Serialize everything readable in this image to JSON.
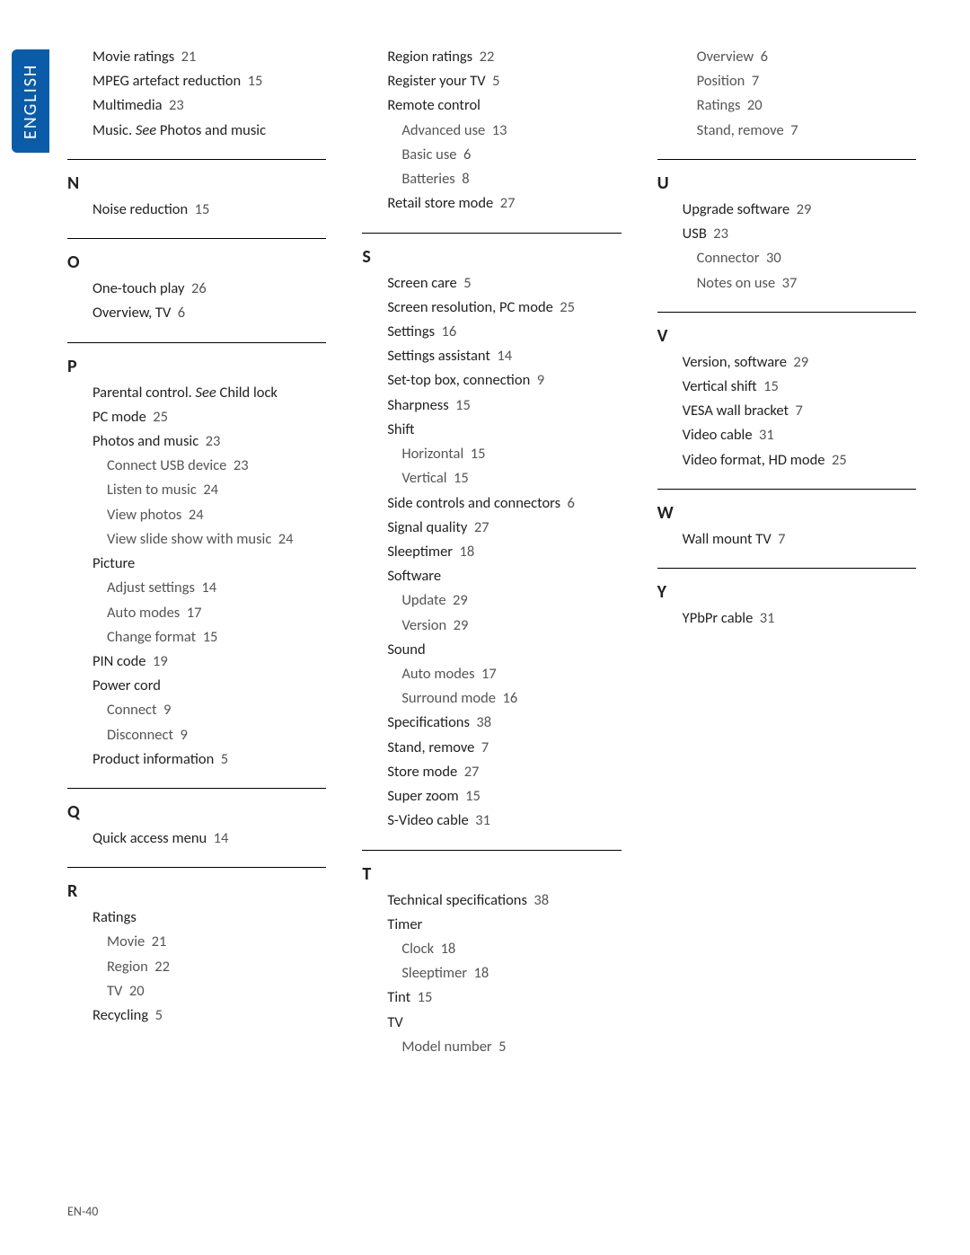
{
  "language_tab": "ENGLISH",
  "footer": "EN-40",
  "columns": [
    {
      "sections": [
        {
          "letter": null,
          "no_rule": true,
          "items": [
            {
              "text": "Movie ratings",
              "page": "21",
              "bold": true
            },
            {
              "text": "MPEG artefact reduction",
              "page": "15",
              "bold": true
            },
            {
              "text": "Multimedia",
              "page": "23",
              "bold": true
            },
            {
              "html": "<span class='bold'>Music.</span> <span class='italic'>See</span> <span class='bold'>Photos and music</span>",
              "bold": true
            }
          ]
        },
        {
          "letter": "N",
          "items": [
            {
              "text": "Noise reduction",
              "page": "15",
              "bold": true
            }
          ]
        },
        {
          "letter": "O",
          "items": [
            {
              "text": "One-touch play",
              "page": "26",
              "bold": true
            },
            {
              "text": "Overview, TV",
              "page": "6",
              "bold": true
            }
          ]
        },
        {
          "letter": "P",
          "items": [
            {
              "html": "<span class='bold'>Parental control.</span> <span class='italic'>See</span> <span class='bold'>Child lock</span>",
              "bold": true
            },
            {
              "text": "PC mode",
              "page": "25",
              "bold": true
            },
            {
              "text": "Photos and music",
              "page": "23",
              "bold": true
            },
            {
              "text": "Connect USB device",
              "page": "23",
              "sub": true
            },
            {
              "text": "Listen to music",
              "page": "24",
              "sub": true
            },
            {
              "text": "View photos",
              "page": "24",
              "sub": true
            },
            {
              "text": "View slide show with music",
              "page": "24",
              "sub": true
            },
            {
              "text": "Picture",
              "bold": true
            },
            {
              "text": "Adjust settings",
              "page": "14",
              "sub": true
            },
            {
              "text": "Auto modes",
              "page": "17",
              "sub": true
            },
            {
              "text": "Change format",
              "page": "15",
              "sub": true
            },
            {
              "text": "PIN code",
              "page": "19",
              "bold": true
            },
            {
              "text": "Power cord",
              "bold": true
            },
            {
              "text": "Connect",
              "page": "9",
              "sub": true
            },
            {
              "text": "Disconnect",
              "page": "9",
              "sub": true
            },
            {
              "text": "Product information",
              "page": "5",
              "bold": true
            }
          ]
        },
        {
          "letter": "Q",
          "items": [
            {
              "text": "Quick access menu",
              "page": "14",
              "bold": true
            }
          ]
        },
        {
          "letter": "R",
          "items": [
            {
              "text": "Ratings",
              "bold": true
            },
            {
              "text": "Movie",
              "page": "21",
              "sub": true
            },
            {
              "text": "Region",
              "page": "22",
              "sub": true
            },
            {
              "text": "TV",
              "page": "20",
              "sub": true
            },
            {
              "text": "Recycling",
              "page": "5",
              "bold": true
            }
          ]
        }
      ]
    },
    {
      "sections": [
        {
          "letter": null,
          "no_rule": true,
          "items": [
            {
              "text": "Region ratings",
              "page": "22",
              "bold": true
            },
            {
              "text": "Register your TV",
              "page": "5",
              "bold": true
            },
            {
              "text": "Remote control",
              "bold": true
            },
            {
              "text": "Advanced use",
              "page": "13",
              "sub": true
            },
            {
              "text": "Basic use",
              "page": "6",
              "sub": true
            },
            {
              "text": "Batteries",
              "page": "8",
              "sub": true
            },
            {
              "text": "Retail store mode",
              "page": "27",
              "bold": true
            }
          ]
        },
        {
          "letter": "S",
          "items": [
            {
              "text": "Screen care",
              "page": "5",
              "bold": true
            },
            {
              "text": "Screen resolution, PC mode",
              "page": "25",
              "bold": true
            },
            {
              "text": "Settings",
              "page": "16",
              "bold": true
            },
            {
              "text": "Settings assistant",
              "page": "14",
              "bold": true
            },
            {
              "text": "Set-top box, connection",
              "page": "9",
              "bold": true
            },
            {
              "text": "Sharpness",
              "page": "15",
              "bold": true
            },
            {
              "text": "Shift",
              "bold": true
            },
            {
              "text": "Horizontal",
              "page": "15",
              "sub": true
            },
            {
              "text": "Vertical",
              "page": "15",
              "sub": true
            },
            {
              "text": "Side controls and connectors",
              "page": "6",
              "bold": true
            },
            {
              "text": "Signal quality",
              "page": "27",
              "bold": true
            },
            {
              "text": "Sleeptimer",
              "page": "18",
              "bold": true
            },
            {
              "text": "Software",
              "bold": true
            },
            {
              "text": "Update",
              "page": "29",
              "sub": true
            },
            {
              "text": "Version",
              "page": "29",
              "sub": true
            },
            {
              "text": "Sound",
              "bold": true
            },
            {
              "text": "Auto modes",
              "page": "17",
              "sub": true
            },
            {
              "text": "Surround mode",
              "page": "16",
              "sub": true
            },
            {
              "text": "Specifications",
              "page": "38",
              "bold": true
            },
            {
              "text": "Stand, remove",
              "page": "7",
              "bold": true
            },
            {
              "text": "Store mode",
              "page": "27",
              "bold": true
            },
            {
              "text": "Super zoom",
              "page": "15",
              "bold": true
            },
            {
              "text": "S-Video cable",
              "page": "31",
              "bold": true
            }
          ]
        },
        {
          "letter": "T",
          "items": [
            {
              "text": "Technical specifications",
              "page": "38",
              "bold": true
            },
            {
              "text": "Timer",
              "bold": true
            },
            {
              "text": "Clock",
              "page": "18",
              "sub": true
            },
            {
              "text": "Sleeptimer",
              "page": "18",
              "sub": true
            },
            {
              "text": "Tint",
              "page": "15",
              "bold": true
            },
            {
              "text": "TV",
              "bold": true
            },
            {
              "text": "Model number",
              "page": "5",
              "sub": true
            }
          ]
        }
      ]
    },
    {
      "sections": [
        {
          "letter": null,
          "no_rule": true,
          "items": [
            {
              "text": "Overview",
              "page": "6",
              "sub": true
            },
            {
              "text": "Position",
              "page": "7",
              "sub": true
            },
            {
              "text": "Ratings",
              "page": "20",
              "sub": true
            },
            {
              "text": "Stand, remove",
              "page": "7",
              "sub": true
            }
          ]
        },
        {
          "letter": "U",
          "items": [
            {
              "text": "Upgrade software",
              "page": "29",
              "bold": true
            },
            {
              "text": "USB",
              "page": "23",
              "bold": true
            },
            {
              "text": "Connector",
              "page": "30",
              "sub": true
            },
            {
              "text": "Notes on use",
              "page": "37",
              "sub": true
            }
          ]
        },
        {
          "letter": "V",
          "items": [
            {
              "text": "Version, software",
              "page": "29",
              "bold": true
            },
            {
              "text": "Vertical shift",
              "page": "15",
              "bold": true
            },
            {
              "text": "VESA wall bracket",
              "page": "7",
              "bold": true
            },
            {
              "text": "Video cable",
              "page": "31",
              "bold": true
            },
            {
              "text": "Video format, HD mode",
              "page": "25",
              "bold": true
            }
          ]
        },
        {
          "letter": "W",
          "items": [
            {
              "text": "Wall mount TV",
              "page": "7",
              "bold": true
            }
          ]
        },
        {
          "letter": "Y",
          "items": [
            {
              "text": "YPbPr cable",
              "page": "31",
              "bold": true
            }
          ]
        }
      ]
    }
  ]
}
